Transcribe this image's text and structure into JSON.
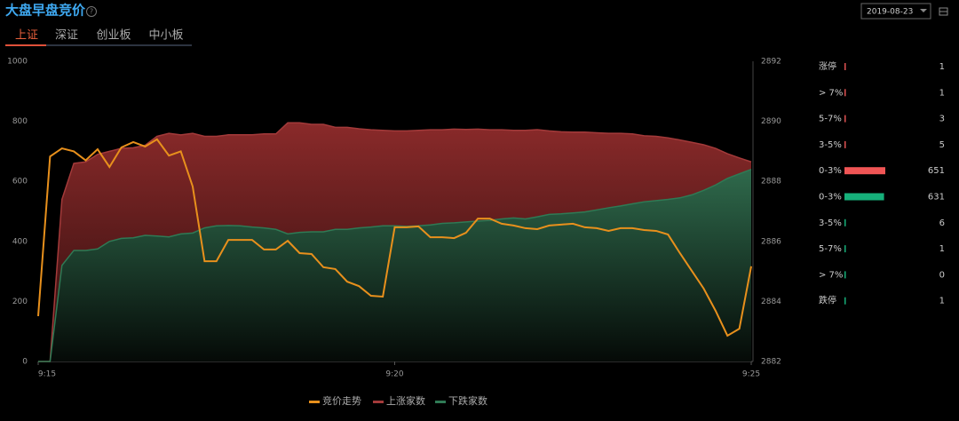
{
  "header": {
    "title": "大盘早盘竞价",
    "date": "2019-08-23",
    "tabs": [
      "上证",
      "深证",
      "创业板",
      "中小板"
    ]
  },
  "chart_data": {
    "type": "area",
    "categories": [
      "9:15",
      null,
      null,
      null,
      null,
      null,
      null,
      null,
      null,
      null,
      null,
      null,
      null,
      null,
      null,
      null,
      null,
      null,
      null,
      null,
      null,
      null,
      null,
      null,
      null,
      null,
      null,
      null,
      null,
      null,
      "9:20",
      null,
      null,
      null,
      null,
      null,
      null,
      null,
      null,
      null,
      null,
      null,
      null,
      null,
      null,
      null,
      null,
      null,
      null,
      null,
      null,
      null,
      null,
      null,
      null,
      null,
      null,
      null,
      null,
      null,
      "9:25"
    ],
    "ylim": [
      0,
      1000
    ],
    "yticks": [
      0,
      200,
      400,
      600,
      800,
      1000
    ],
    "y2lim": [
      2882,
      2892
    ],
    "y2ticks": [
      2882,
      2884,
      2886,
      2888,
      2890,
      2892
    ],
    "series": [
      {
        "name": "竞价走势",
        "type": "line",
        "axis": "y2",
        "color": "#e8901c",
        "values": [
          2883.51,
          2888.83,
          2889.1,
          2889.0,
          2888.7,
          2889.07,
          2888.48,
          2889.13,
          2889.31,
          2889.16,
          2889.4,
          2888.86,
          2889.0,
          2887.83,
          2885.34,
          2885.34,
          2886.05,
          2886.05,
          2886.05,
          2885.73,
          2885.73,
          2886.02,
          2885.61,
          2885.58,
          2885.14,
          2885.08,
          2884.66,
          2884.51,
          2884.19,
          2884.16,
          2886.47,
          2886.47,
          2886.5,
          2886.14,
          2886.14,
          2886.11,
          2886.29,
          2886.76,
          2886.76,
          2886.59,
          2886.53,
          2886.44,
          2886.41,
          2886.53,
          2886.56,
          2886.59,
          2886.47,
          2886.44,
          2886.35,
          2886.44,
          2886.44,
          2886.38,
          2886.35,
          2886.23,
          2885.61,
          2885.02,
          2884.43,
          2883.69,
          2882.86,
          2883.09,
          2885.17
        ]
      },
      {
        "name": "上涨家数",
        "type": "area",
        "color": "#a33a3a",
        "values": [
          0,
          0,
          540,
          660,
          665,
          690,
          700,
          710,
          712,
          720,
          750,
          760,
          755,
          760,
          750,
          750,
          755,
          755,
          755,
          758,
          758,
          795,
          795,
          790,
          790,
          780,
          780,
          775,
          772,
          770,
          768,
          768,
          770,
          772,
          772,
          774,
          773,
          774,
          772,
          772,
          770,
          770,
          772,
          768,
          765,
          764,
          764,
          762,
          760,
          760,
          758,
          752,
          750,
          745,
          738,
          730,
          722,
          710,
          692,
          678,
          665
        ]
      },
      {
        "name": "下跌家数",
        "type": "area",
        "color": "#2f7a55",
        "values": [
          0,
          0,
          320,
          370,
          370,
          375,
          400,
          410,
          412,
          420,
          418,
          415,
          425,
          428,
          445,
          452,
          453,
          452,
          448,
          445,
          440,
          425,
          430,
          432,
          432,
          440,
          440,
          445,
          448,
          452,
          452,
          450,
          452,
          455,
          460,
          462,
          465,
          468,
          470,
          475,
          478,
          475,
          482,
          490,
          492,
          495,
          498,
          505,
          512,
          518,
          525,
          532,
          536,
          540,
          545,
          555,
          570,
          588,
          610,
          625,
          640
        ]
      }
    ]
  },
  "distribution": {
    "rows": [
      {
        "label": "涨停",
        "value": 1,
        "color": "#e05252"
      },
      {
        "label": "> 7%",
        "value": 1,
        "color": "#e05252"
      },
      {
        "label": "5-7%",
        "value": 3,
        "color": "#e05252"
      },
      {
        "label": "3-5%",
        "value": 5,
        "color": "#e05252"
      },
      {
        "label": "0-3%",
        "value": 651,
        "color": "#f05555"
      },
      {
        "label": "0-3%",
        "value": 631,
        "color": "#16b07a"
      },
      {
        "label": "3-5%",
        "value": 6,
        "color": "#16b07a"
      },
      {
        "label": "5-7%",
        "value": 1,
        "color": "#16b07a"
      },
      {
        "label": "> 7%",
        "value": 0,
        "color": "#16b07a"
      },
      {
        "label": "跌停",
        "value": 1,
        "color": "#16b07a"
      }
    ]
  }
}
